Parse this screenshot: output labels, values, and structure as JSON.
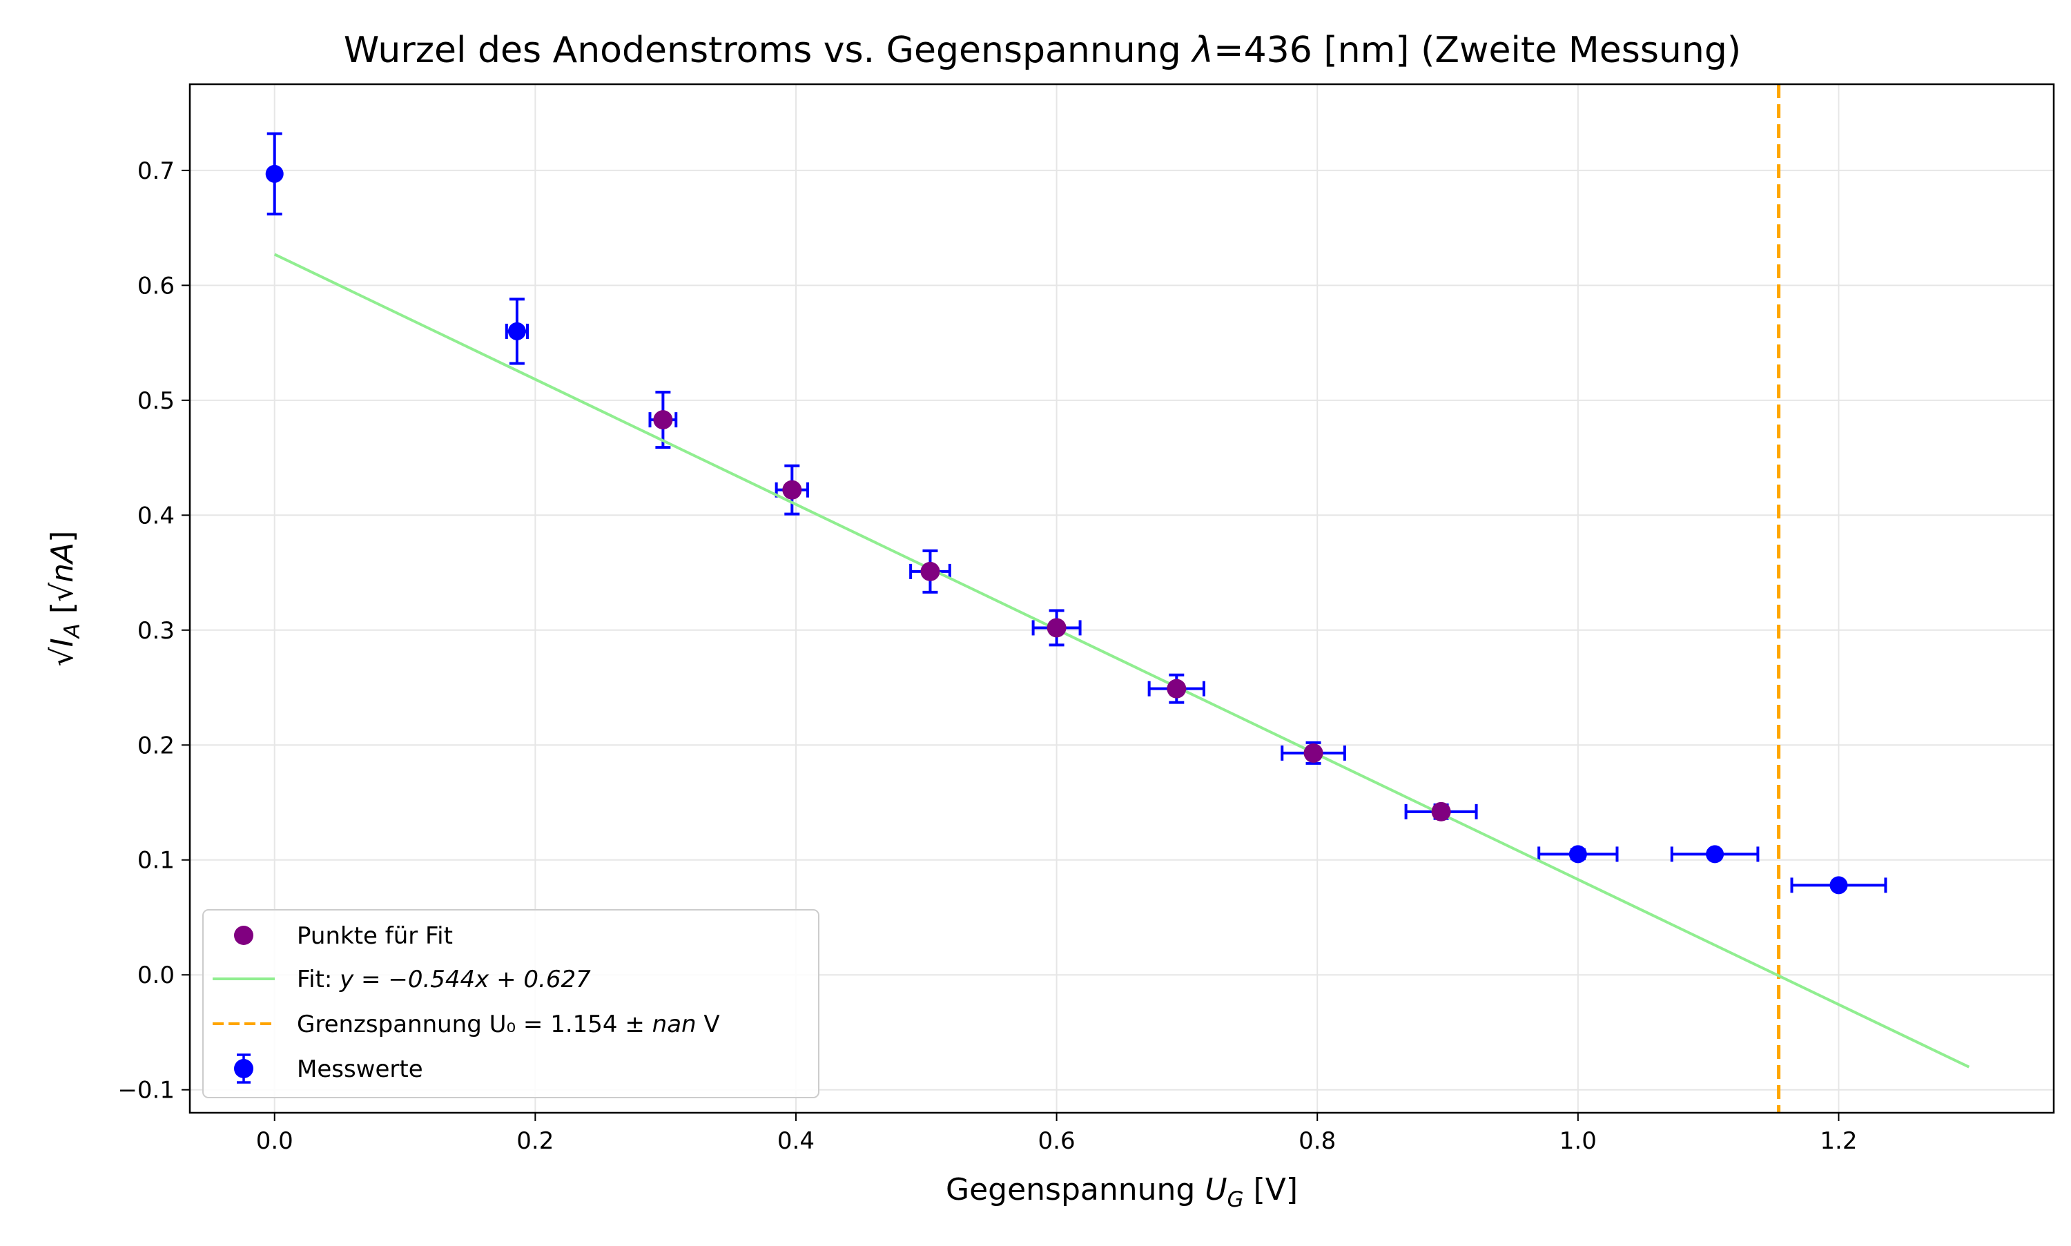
{
  "chart_data": {
    "type": "scatter",
    "title": "Wurzel des Anodenstroms vs. Gegenspannung λ=436 [nm] (Zweite Messung)",
    "xlabel": "Gegenspannung U_G [V]",
    "ylabel": "√I_A [√nA]",
    "xlim": [
      -0.065,
      1.365
    ],
    "ylim": [
      -0.12,
      0.775
    ],
    "xticks": [
      0.0,
      0.2,
      0.4,
      0.6,
      0.8,
      1.0,
      1.2
    ],
    "xtick_labels": [
      "0.0",
      "0.2",
      "0.4",
      "0.6",
      "0.8",
      "1.0",
      "1.2"
    ],
    "yticks": [
      -0.1,
      0.0,
      0.1,
      0.2,
      0.3,
      0.4,
      0.5,
      0.6,
      0.7
    ],
    "ytick_labels": [
      "−0.1",
      "0.0",
      "0.1",
      "0.2",
      "0.3",
      "0.4",
      "0.5",
      "0.6",
      "0.7"
    ],
    "grid": true,
    "legend_position": "lower-left",
    "colors": {
      "measurements": "#0000ff",
      "fit_points": "#800080",
      "fit_line": "#90ee90",
      "cutoff_line": "#ffa500"
    },
    "series": [
      {
        "name": "Messwerte",
        "kind": "errorbar",
        "x": [
          0.0,
          0.186,
          0.298,
          0.397,
          0.503,
          0.6,
          0.692,
          0.797,
          0.895,
          1.0,
          1.105,
          1.2
        ],
        "y": [
          0.697,
          0.56,
          0.483,
          0.422,
          0.351,
          0.302,
          0.249,
          0.193,
          0.142,
          0.105,
          0.105,
          0.078
        ],
        "xerr": [
          0.0,
          0.008,
          0.01,
          0.012,
          0.015,
          0.018,
          0.021,
          0.024,
          0.027,
          0.03,
          0.033,
          0.036
        ],
        "yerr": [
          0.035,
          0.028,
          0.024,
          0.021,
          0.018,
          0.015,
          0.012,
          0.009,
          0.006,
          0.004,
          0.003,
          0.002
        ]
      },
      {
        "name": "Punkte für Fit",
        "kind": "scatter",
        "x": [
          0.298,
          0.397,
          0.503,
          0.6,
          0.692,
          0.797,
          0.895
        ],
        "y": [
          0.483,
          0.422,
          0.351,
          0.302,
          0.249,
          0.193,
          0.142
        ]
      },
      {
        "name": "Fit: y = −0.544x + 0.627",
        "kind": "line",
        "slope": -0.544,
        "intercept": 0.627,
        "x_range": [
          0.0,
          1.3
        ]
      },
      {
        "name": "Grenzspannung U₀ = 1.154 ± nan V",
        "kind": "vline",
        "x": 1.154
      }
    ],
    "legend": {
      "fit_points": "Punkte für Fit",
      "fit_line_prefix": "Fit: ",
      "fit_line_formula": "y = −0.544x + 0.627",
      "cutoff_prefix": "Grenzspannung ",
      "cutoff_formula": "U₀ = 1.154 ± ",
      "cutoff_nan": "nan",
      "cutoff_unit": " V",
      "measurements": "Messwerte"
    },
    "labels": {
      "title_main": "Wurzel des Anodenstroms vs. Gegenspannung ",
      "title_lambda": "λ",
      "title_rest": "=436 [nm] (Zweite Messung)",
      "xlabel_prefix": "Gegenspannung ",
      "xlabel_var": "U",
      "xlabel_sub": "G",
      "xlabel_unit": " [V]",
      "ylabel_root": "√",
      "ylabel_var": "I",
      "ylabel_sub": "A",
      "ylabel_open": " [",
      "ylabel_unit_root": "√",
      "ylabel_unit": "nA",
      "ylabel_close": "]"
    }
  }
}
